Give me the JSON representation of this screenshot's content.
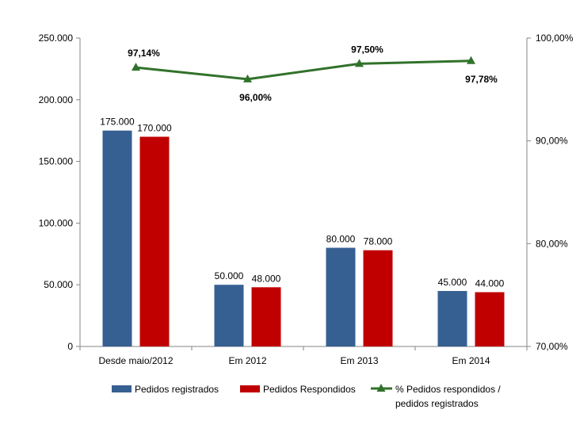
{
  "chart_data": {
    "type": "bar",
    "categories": [
      "Desde maio/2012",
      "Em 2012",
      "Em 2013",
      "Em 2014"
    ],
    "series": [
      {
        "name": "Pedidos registrados",
        "type": "bar",
        "axis": "left",
        "color": "#376092",
        "values": [
          175000,
          50000,
          80000,
          45000
        ],
        "labels": [
          "175.000",
          "50.000",
          "80.000",
          "45.000"
        ]
      },
      {
        "name": "Pedidos Respondidos",
        "type": "bar",
        "axis": "left",
        "color": "#C00000",
        "values": [
          170000,
          48000,
          78000,
          44000
        ],
        "labels": [
          "170.000",
          "48.000",
          "78.000",
          "44.000"
        ]
      },
      {
        "name": "% Pedidos respondidos / pedidos registrados",
        "legend_lines": [
          "% Pedidos respondidos /",
          "pedidos registrados"
        ],
        "type": "line",
        "axis": "right",
        "color": "#31722B",
        "values": [
          97.14,
          96.0,
          97.5,
          97.78
        ],
        "labels": [
          "97,14%",
          "96,00%",
          "97,50%",
          "97,78%"
        ]
      }
    ],
    "y_left": {
      "range": [
        0,
        250000
      ],
      "ticks": [
        0,
        50000,
        100000,
        150000,
        200000,
        250000
      ],
      "tick_labels": [
        "0",
        "50.000",
        "100.000",
        "150.000",
        "200.000",
        "250.000"
      ]
    },
    "y_right": {
      "range": [
        70,
        100
      ],
      "ticks": [
        70,
        80,
        90,
        100
      ],
      "tick_labels": [
        "70,00%",
        "80,00%",
        "90,00%",
        "100,00%"
      ]
    },
    "grid": false,
    "legend_position": "bottom"
  }
}
